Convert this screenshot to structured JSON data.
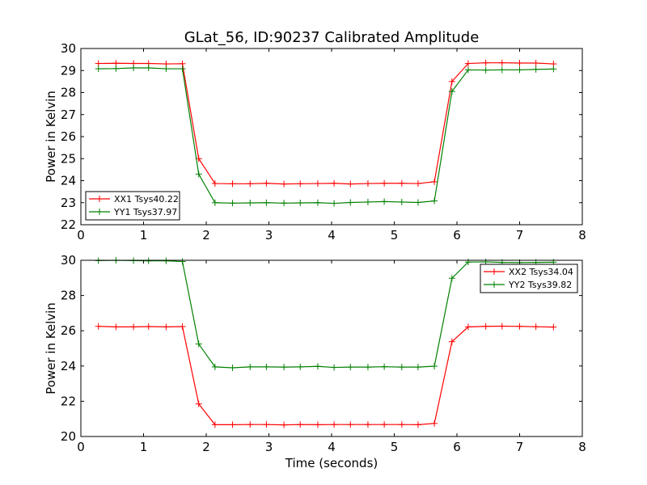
{
  "figure": {
    "title": "GLat_56, ID:90237 Calibrated Amplitude"
  },
  "chart_data": [
    {
      "type": "line",
      "title": "GLat_56, ID:90237 Calibrated Amplitude",
      "xlabel": "",
      "ylabel": "Power in Kelvin",
      "xlim": [
        0,
        8
      ],
      "ylim": [
        22,
        30
      ],
      "xticks": [
        0,
        1,
        2,
        3,
        4,
        5,
        6,
        7,
        8
      ],
      "yticks": [
        22,
        23,
        24,
        25,
        26,
        27,
        28,
        29,
        30
      ],
      "grid": false,
      "legend_position": "lower-left",
      "x": [
        0.28,
        0.56,
        0.84,
        1.08,
        1.36,
        1.62,
        1.88,
        2.14,
        2.42,
        2.7,
        2.96,
        3.24,
        3.5,
        3.78,
        4.04,
        4.3,
        4.58,
        4.84,
        5.12,
        5.38,
        5.64,
        5.92,
        6.18,
        6.46,
        6.72,
        7.0,
        7.26,
        7.54
      ],
      "series": [
        {
          "name": "XX1 Tsys40.22",
          "color": "#ff0000",
          "values": [
            29.32,
            29.33,
            29.32,
            29.32,
            29.3,
            29.31,
            25.0,
            23.87,
            23.86,
            23.86,
            23.88,
            23.85,
            23.86,
            23.87,
            23.88,
            23.85,
            23.87,
            23.88,
            23.88,
            23.87,
            23.95,
            28.5,
            29.32,
            29.35,
            29.35,
            29.34,
            29.34,
            29.3
          ]
        },
        {
          "name": "YY1 Tsys37.97",
          "color": "#008000",
          "values": [
            29.08,
            29.09,
            29.12,
            29.12,
            29.08,
            29.08,
            24.3,
            23.0,
            22.98,
            22.99,
            23.0,
            22.98,
            22.99,
            23.0,
            22.97,
            23.01,
            23.03,
            23.05,
            23.03,
            23.01,
            23.08,
            28.05,
            29.03,
            29.02,
            29.03,
            29.03,
            29.05,
            29.07
          ]
        }
      ]
    },
    {
      "type": "line",
      "title": "",
      "xlabel": "Time (seconds)",
      "ylabel": "Power in Kelvin",
      "xlim": [
        0,
        8
      ],
      "ylim": [
        20,
        30
      ],
      "xticks": [
        0,
        1,
        2,
        3,
        4,
        5,
        6,
        7,
        8
      ],
      "yticks": [
        20,
        22,
        24,
        26,
        28,
        30
      ],
      "grid": false,
      "legend_position": "top-right",
      "x": [
        0.28,
        0.56,
        0.84,
        1.08,
        1.36,
        1.62,
        1.88,
        2.14,
        2.42,
        2.7,
        2.96,
        3.24,
        3.5,
        3.78,
        4.04,
        4.3,
        4.58,
        4.84,
        5.12,
        5.38,
        5.64,
        5.92,
        6.18,
        6.46,
        6.72,
        7.0,
        7.26,
        7.54
      ],
      "series": [
        {
          "name": "XX2 Tsys34.04",
          "color": "#ff0000",
          "values": [
            26.25,
            26.22,
            26.22,
            26.24,
            26.22,
            26.24,
            21.85,
            20.67,
            20.67,
            20.68,
            20.68,
            20.66,
            20.68,
            20.67,
            20.68,
            20.68,
            20.68,
            20.68,
            20.68,
            20.67,
            20.74,
            25.38,
            26.22,
            26.25,
            26.26,
            26.25,
            26.23,
            26.21
          ]
        },
        {
          "name": "YY2 Tsys39.82",
          "color": "#008000",
          "values": [
            29.98,
            30.0,
            29.98,
            29.97,
            29.97,
            29.93,
            25.25,
            23.95,
            23.9,
            23.95,
            23.95,
            23.94,
            23.95,
            23.98,
            23.92,
            23.94,
            23.94,
            23.96,
            23.94,
            23.94,
            23.99,
            28.98,
            29.9,
            29.91,
            29.88,
            29.87,
            29.88,
            29.89
          ]
        }
      ]
    }
  ]
}
